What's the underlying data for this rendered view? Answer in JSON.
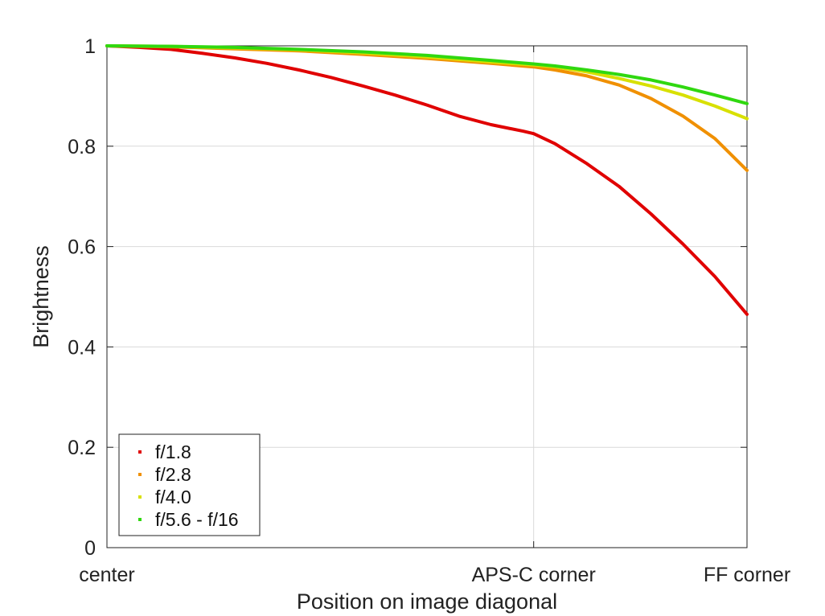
{
  "chart_data": {
    "type": "line",
    "title": "",
    "xlabel": "Position on image diagonal",
    "ylabel": "Brightness",
    "xlim": [
      0,
      1
    ],
    "ylim": [
      0,
      1
    ],
    "grid": true,
    "legend_position": "bottom-left",
    "x_ticks": [
      {
        "value": 0,
        "label": "center"
      },
      {
        "value": 0.6667,
        "label": "APS-C corner"
      },
      {
        "value": 1,
        "label": "FF corner"
      }
    ],
    "y_ticks": [
      {
        "value": 0,
        "label": "0"
      },
      {
        "value": 0.2,
        "label": "0.2"
      },
      {
        "value": 0.4,
        "label": "0.4"
      },
      {
        "value": 0.6,
        "label": "0.6"
      },
      {
        "value": 0.8,
        "label": "0.8"
      },
      {
        "value": 1,
        "label": "1"
      }
    ],
    "series": [
      {
        "name": "f/1.8",
        "color": "#e00000",
        "x": [
          0,
          0.05,
          0.1,
          0.15,
          0.2,
          0.25,
          0.3,
          0.35,
          0.4,
          0.45,
          0.5,
          0.55,
          0.6,
          0.65,
          0.6667,
          0.7,
          0.75,
          0.8,
          0.85,
          0.9,
          0.95,
          1.0
        ],
        "y": [
          1.0,
          0.997,
          0.993,
          0.985,
          0.976,
          0.965,
          0.952,
          0.937,
          0.92,
          0.902,
          0.882,
          0.86,
          0.843,
          0.83,
          0.825,
          0.805,
          0.765,
          0.72,
          0.665,
          0.605,
          0.54,
          0.465
        ]
      },
      {
        "name": "f/2.8",
        "color": "#f09000",
        "x": [
          0,
          0.1,
          0.2,
          0.3,
          0.4,
          0.5,
          0.6,
          0.6667,
          0.7,
          0.75,
          0.8,
          0.85,
          0.9,
          0.95,
          1.0
        ],
        "y": [
          1.0,
          0.998,
          0.994,
          0.99,
          0.983,
          0.975,
          0.965,
          0.958,
          0.952,
          0.94,
          0.922,
          0.895,
          0.86,
          0.815,
          0.752
        ]
      },
      {
        "name": "f/4.0",
        "color": "#d8e000",
        "x": [
          0,
          0.1,
          0.2,
          0.3,
          0.4,
          0.5,
          0.6,
          0.6667,
          0.7,
          0.75,
          0.8,
          0.85,
          0.9,
          0.95,
          1.0
        ],
        "y": [
          1.0,
          0.999,
          0.996,
          0.992,
          0.986,
          0.978,
          0.968,
          0.962,
          0.958,
          0.948,
          0.935,
          0.92,
          0.902,
          0.88,
          0.855
        ]
      },
      {
        "name": "f/5.6 - f/16",
        "color": "#30d810",
        "x": [
          0,
          0.1,
          0.2,
          0.3,
          0.4,
          0.5,
          0.6,
          0.6667,
          0.7,
          0.75,
          0.8,
          0.85,
          0.9,
          0.95,
          1.0
        ],
        "y": [
          1.0,
          0.999,
          0.997,
          0.993,
          0.988,
          0.981,
          0.971,
          0.964,
          0.96,
          0.952,
          0.943,
          0.932,
          0.918,
          0.902,
          0.885
        ]
      }
    ]
  }
}
